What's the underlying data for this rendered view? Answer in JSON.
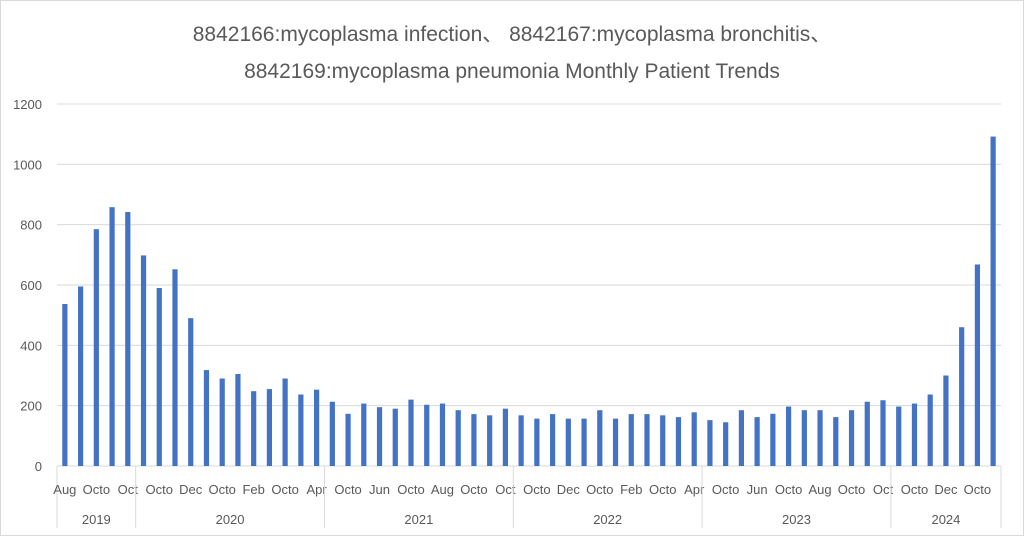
{
  "chart_data": {
    "type": "bar",
    "title_line1": "8842166:mycoplasma infection、 8842167:mycoplasma bronchitis、",
    "title_line2": "8842169:mycoplasma pneumonia Monthly Patient Trends",
    "xlabel": "",
    "ylabel": "",
    "ylim": [
      0,
      1200
    ],
    "yticks": [
      "0",
      "200",
      "400",
      "600",
      "800",
      "1000",
      "1200"
    ],
    "grid": true,
    "bar_color": "#4472c4",
    "groups": [
      {
        "year": "2019",
        "labels": [
          "Aug",
          "",
          "Octo",
          "",
          "Oct"
        ],
        "values": [
          537,
          595,
          785,
          858,
          842
        ]
      },
      {
        "year": "2020",
        "labels": [
          "",
          "Octo",
          "",
          "Dec",
          "",
          "Octo",
          "",
          "Feb",
          "",
          "Octo",
          "",
          "Apr"
        ],
        "values": [
          698,
          590,
          652,
          490,
          318,
          290,
          305,
          248,
          255,
          290,
          237,
          253
        ]
      },
      {
        "year": "2021",
        "labels": [
          "",
          "Octo",
          "",
          "Jun",
          "",
          "Octo",
          "",
          "Aug",
          "",
          "Octo",
          "",
          "Oct"
        ],
        "values": [
          213,
          173,
          207,
          195,
          190,
          220,
          203,
          207,
          185,
          172,
          168,
          190
        ]
      },
      {
        "year": "2022",
        "labels": [
          "",
          "Octo",
          "",
          "Dec",
          "",
          "Octo",
          "",
          "Feb",
          "",
          "Octo",
          "",
          "Apr"
        ],
        "values": [
          168,
          157,
          172,
          157,
          157,
          185,
          157,
          172,
          172,
          168,
          162,
          178
        ]
      },
      {
        "year": "2023",
        "labels": [
          "",
          "Octo",
          "",
          "Jun",
          "",
          "Octo",
          "",
          "Aug",
          "",
          "Octo",
          "",
          "Oct"
        ],
        "values": [
          152,
          145,
          185,
          162,
          173,
          197,
          185,
          185,
          162,
          185,
          213,
          218
        ]
      },
      {
        "year": "2024",
        "labels": [
          "",
          "Octo",
          "",
          "Dec",
          "",
          "Octo",
          ""
        ],
        "values": [
          197,
          207,
          237,
          300,
          460,
          668,
          1092
        ]
      }
    ]
  }
}
